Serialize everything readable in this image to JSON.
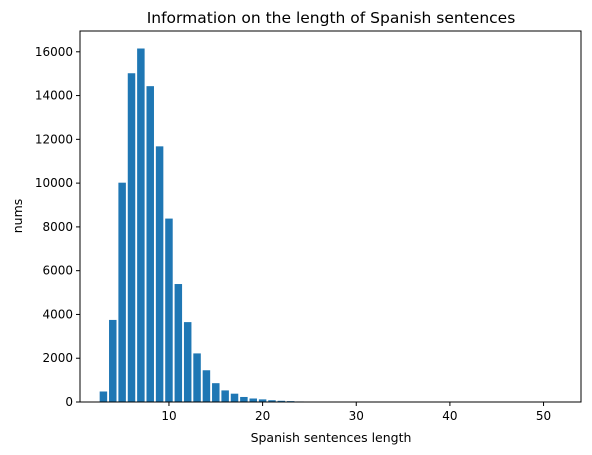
{
  "chart_data": {
    "type": "bar",
    "title": "Information on the length of Spanish sentences",
    "xlabel": "Spanish sentences length",
    "ylabel": "nums",
    "xlim": [
      0.5,
      54
    ],
    "ylim": [
      0,
      16950
    ],
    "xticks": [
      10,
      20,
      30,
      40,
      50
    ],
    "yticks": [
      0,
      2000,
      4000,
      6000,
      8000,
      10000,
      12000,
      14000,
      16000
    ],
    "bar_color": "#1f77b4",
    "grid": false,
    "legend": "none",
    "x": [
      3,
      4,
      5,
      6,
      7,
      8,
      9,
      10,
      11,
      12,
      13,
      14,
      15,
      16,
      17,
      18,
      19,
      20,
      21,
      22,
      23,
      24,
      25,
      26,
      27,
      28,
      29,
      30,
      31,
      32,
      33,
      34,
      35,
      36,
      37,
      38,
      39,
      40,
      41,
      42,
      43,
      44,
      45,
      46,
      47,
      48,
      49,
      50,
      51
    ],
    "values": [
      480,
      3750,
      10020,
      15020,
      16150,
      14430,
      11680,
      8380,
      5390,
      3650,
      2220,
      1450,
      860,
      530,
      380,
      230,
      160,
      120,
      80,
      55,
      40,
      25,
      18,
      12,
      8,
      5,
      4,
      3,
      2,
      2,
      1,
      1,
      1,
      1,
      1,
      1,
      1,
      1,
      1,
      1,
      1,
      1,
      1,
      1,
      1,
      1,
      1,
      1,
      1
    ]
  }
}
